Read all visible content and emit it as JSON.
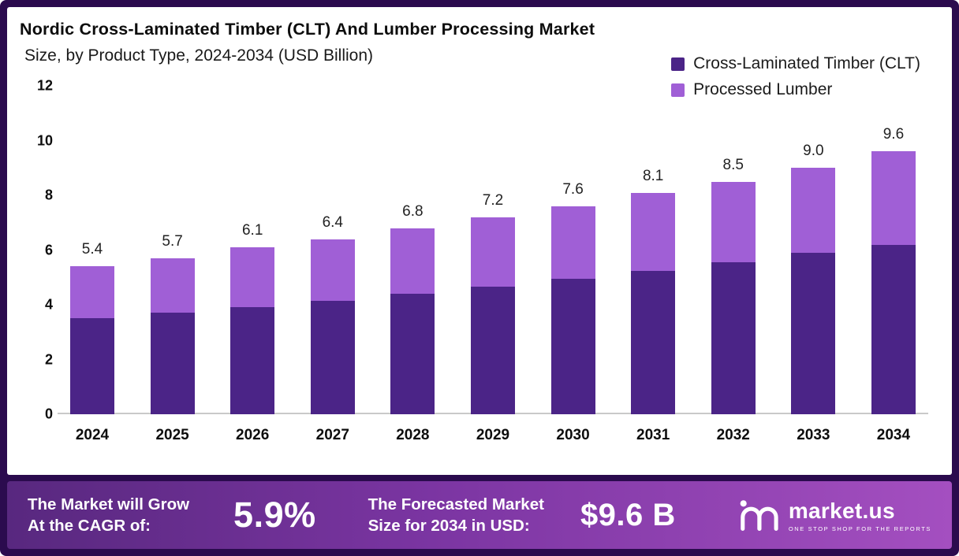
{
  "header": {
    "title": "Nordic Cross-Laminated Timber (CLT) And Lumber Processing Market",
    "subtitle": "Size, by Product Type, 2024-2034 (USD Billion)"
  },
  "colors": {
    "frame_border": "#2b0b4e",
    "clt_purple": "#4b2487",
    "lumber_purple": "#a05fd6",
    "banner_gradient_start": "#58287f",
    "banner_gradient_end": "#a44fc0"
  },
  "chart_data": {
    "type": "bar",
    "stacked": true,
    "title": "Nordic Cross-Laminated Timber (CLT) And Lumber Processing Market Size, by Product Type, 2024-2034 (USD Billion)",
    "categories": [
      "2024",
      "2025",
      "2026",
      "2027",
      "2028",
      "2029",
      "2030",
      "2031",
      "2032",
      "2033",
      "2034"
    ],
    "series": [
      {
        "name": "Cross-Laminated Timber (CLT)",
        "color": "#4b2487",
        "values": [
          3.5,
          3.7,
          3.9,
          4.15,
          4.4,
          4.65,
          4.95,
          5.25,
          5.55,
          5.9,
          6.2
        ]
      },
      {
        "name": "Processed Lumber",
        "color": "#a05fd6",
        "values": [
          1.9,
          2.0,
          2.2,
          2.25,
          2.4,
          2.55,
          2.65,
          2.85,
          2.95,
          3.1,
          3.4
        ]
      }
    ],
    "totals": [
      5.4,
      5.7,
      6.1,
      6.4,
      6.8,
      7.2,
      7.6,
      8.1,
      8.5,
      9.0,
      9.6
    ],
    "total_labels": [
      "5.4",
      "5.7",
      "6.1",
      "6.4",
      "6.8",
      "7.2",
      "7.6",
      "8.1",
      "8.5",
      "9.0",
      "9.6"
    ],
    "xlabel": "",
    "ylabel": "",
    "ylim": [
      0,
      12
    ],
    "yticks": [
      0,
      2,
      4,
      6,
      8,
      10,
      12
    ],
    "grid": false,
    "legend_position": "top-right"
  },
  "legend": {
    "items": [
      {
        "label": "Cross-Laminated Timber (CLT)",
        "color": "#4b2487"
      },
      {
        "label": "Processed Lumber",
        "color": "#a05fd6"
      }
    ]
  },
  "footer": {
    "cagr_label": "The Market will Grow\nAt the CAGR of:",
    "cagr_value": "5.9%",
    "forecast_label": "The Forecasted Market\nSize for 2034 in USD:",
    "forecast_value": "$9.6 B",
    "brand": {
      "name": "market.us",
      "tagline": "ONE STOP SHOP FOR THE REPORTS"
    }
  }
}
